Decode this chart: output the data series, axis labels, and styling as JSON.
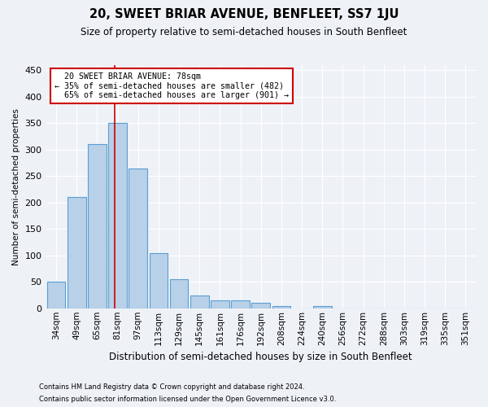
{
  "title": "20, SWEET BRIAR AVENUE, BENFLEET, SS7 1JU",
  "subtitle": "Size of property relative to semi-detached houses in South Benfleet",
  "xlabel": "Distribution of semi-detached houses by size in South Benfleet",
  "ylabel": "Number of semi-detached properties",
  "bar_color": "#b8d0e8",
  "bar_edge_color": "#5a9fd4",
  "bar_labels": [
    "34sqm",
    "49sqm",
    "65sqm",
    "81sqm",
    "97sqm",
    "113sqm",
    "129sqm",
    "145sqm",
    "161sqm",
    "176sqm",
    "192sqm",
    "208sqm",
    "224sqm",
    "240sqm",
    "256sqm",
    "272sqm",
    "288sqm",
    "303sqm",
    "319sqm",
    "335sqm",
    "351sqm"
  ],
  "bar_values": [
    50,
    210,
    310,
    350,
    265,
    105,
    55,
    25,
    15,
    15,
    10,
    5,
    0,
    5,
    0,
    0,
    0,
    0,
    0,
    0,
    0
  ],
  "ylim": [
    0,
    460
  ],
  "yticks": [
    0,
    50,
    100,
    150,
    200,
    250,
    300,
    350,
    400,
    450
  ],
  "property_line_x": 2.87,
  "property_sqm": 78,
  "pct_smaller": 35,
  "count_smaller": 482,
  "pct_larger": 65,
  "count_larger": 901,
  "annotation_box_color": "#ffffff",
  "annotation_box_edge": "#cc0000",
  "property_line_color": "#cc0000",
  "background_color": "#eef2f7",
  "grid_color": "#ffffff",
  "footnote1": "Contains HM Land Registry data © Crown copyright and database right 2024.",
  "footnote2": "Contains public sector information licensed under the Open Government Licence v3.0."
}
